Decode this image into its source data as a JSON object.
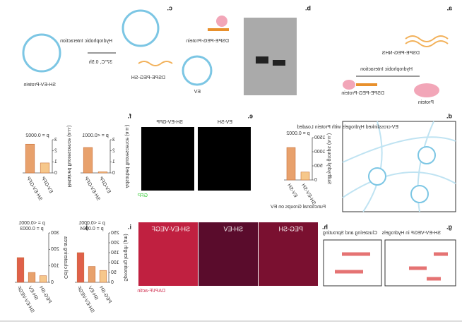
{
  "panels": {
    "a": {
      "label": "a.",
      "texts": [
        "DSPE-PEG-NHS",
        "Hydrophobic Interaction",
        "Protein",
        "DSPE-PEG-Protein"
      ]
    },
    "b": {
      "label": "b."
    },
    "c": {
      "label": "c.",
      "texts": [
        "DSPE-PEG-Protein",
        "EV",
        "DSPE-PEG-SH",
        "Hydrophobic Interaction",
        "37°C, 0.5h",
        "SH-EV-Protein"
      ]
    },
    "d": {
      "label": "d.",
      "title": "EV-crosslinked Hydrogels with Protein Loaded"
    },
    "e": {
      "label": "e.",
      "images": [
        "EV-SH"
      ]
    },
    "f": {
      "label": "f.",
      "images": [
        "SH-EV-GFP"
      ],
      "channel": "GFP"
    },
    "g": {
      "label": "g.",
      "title": "SH-EV-VEGF in Hydrogels"
    },
    "h": {
      "label": "h.",
      "title": "Clustering and Sprouting"
    },
    "i": {
      "label": "i.",
      "images": [
        "PEG-SH",
        "SH-EV",
        "SH-EV-VEGF"
      ],
      "channel": "DAPI/F-actin"
    },
    "j": {
      "label": "j."
    }
  },
  "charts": [
    {
      "ylabel": "Sulfhydryl groups (a.u.)",
      "xlabel": "Functional Groups on EV",
      "categories": [
        "SH-EV-SH",
        "EV-SH"
      ],
      "values": [
        280,
        1150
      ],
      "ylim": [
        0,
        1500
      ],
      "yticks": [
        0,
        500,
        1000,
        1500
      ],
      "p_values": [
        "p = 0.0002"
      ]
    },
    {
      "ylabel": "Adsorbed fluorescence (a.u.)",
      "categories": [
        "EV-GFP",
        "SH-EV-GFP"
      ],
      "values": [
        0.1,
        2.3
      ],
      "ylim": [
        0,
        3
      ],
      "yticks": [
        0,
        1,
        2,
        3
      ],
      "p_values": [
        "p = <0.0001"
      ]
    },
    {
      "ylabel": "Retained fluorescence (a.u.)",
      "categories": [
        "EV-GFP",
        "SH-EV-GFP"
      ],
      "values": [
        0.9,
        2.6
      ],
      "ylim": [
        0,
        3
      ],
      "yticks": [
        0,
        1,
        2,
        3
      ],
      "p_values": [
        "p = 0.0002"
      ]
    },
    {
      "ylabel": "Sprouting length (µm)",
      "categories": [
        "PEG-SH",
        "SH-EV",
        "SH-EV-VEGF"
      ],
      "values": [
        60,
        80,
        150
      ],
      "ylim": [
        0,
        250
      ],
      "yticks": [
        0,
        50,
        100,
        150,
        200,
        250
      ],
      "p_values": [
        "p = 0.0004",
        "p = <0.0001"
      ]
    },
    {
      "ylabel": "Cell clustering area",
      "categories": [
        "PEG-SH",
        "SH-EV",
        "SH-EV-VEGF"
      ],
      "values": [
        40,
        60,
        150
      ],
      "ylim": [
        0,
        300
      ],
      "yticks": [
        0,
        100,
        200,
        300
      ],
      "p_values": [
        "p = 0.0003",
        "p = <0.0001"
      ]
    }
  ]
}
